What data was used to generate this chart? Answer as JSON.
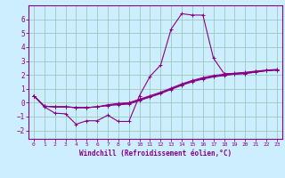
{
  "xlabel": "Windchill (Refroidissement éolien,°C)",
  "bg_color": "#cceeff",
  "line_color": "#880088",
  "grid_color": "#99ccbb",
  "xlim": [
    -0.5,
    23.5
  ],
  "ylim": [
    -2.6,
    7.0
  ],
  "xticks": [
    0,
    1,
    2,
    3,
    4,
    5,
    6,
    7,
    8,
    9,
    10,
    11,
    12,
    13,
    14,
    15,
    16,
    17,
    18,
    19,
    20,
    21,
    22,
    23
  ],
  "yticks": [
    -2,
    -1,
    0,
    1,
    2,
    3,
    4,
    5,
    6
  ],
  "line1_x": [
    0,
    1,
    2,
    3,
    4,
    5,
    6,
    7,
    8,
    9,
    10,
    11,
    12,
    13,
    14,
    15,
    16,
    17,
    18,
    19,
    20,
    21,
    22,
    23
  ],
  "line1_y": [
    0.5,
    -0.3,
    -0.75,
    -0.8,
    -1.55,
    -1.3,
    -1.3,
    -0.9,
    -1.35,
    -1.35,
    0.5,
    1.9,
    2.7,
    5.3,
    6.4,
    6.3,
    6.3,
    3.2,
    2.1,
    2.05,
    2.1,
    2.2,
    2.3,
    2.35
  ],
  "line2_x": [
    0,
    1,
    2,
    3,
    4,
    5,
    6,
    7,
    8,
    9,
    10,
    11,
    12,
    13,
    14,
    15,
    16,
    17,
    18,
    19,
    20,
    21,
    22,
    23
  ],
  "line2_y": [
    0.5,
    -0.25,
    -0.3,
    -0.3,
    -0.35,
    -0.35,
    -0.3,
    -0.2,
    -0.15,
    -0.1,
    0.15,
    0.4,
    0.65,
    0.95,
    1.25,
    1.5,
    1.7,
    1.85,
    1.95,
    2.05,
    2.1,
    2.2,
    2.3,
    2.35
  ],
  "line3_x": [
    0,
    1,
    2,
    3,
    4,
    5,
    6,
    7,
    8,
    9,
    10,
    11,
    12,
    13,
    14,
    15,
    16,
    17,
    18,
    19,
    20,
    21,
    22,
    23
  ],
  "line3_y": [
    0.5,
    -0.25,
    -0.3,
    -0.3,
    -0.35,
    -0.35,
    -0.3,
    -0.2,
    -0.1,
    -0.05,
    0.2,
    0.45,
    0.7,
    1.0,
    1.3,
    1.55,
    1.75,
    1.9,
    2.0,
    2.1,
    2.15,
    2.25,
    2.32,
    2.37
  ],
  "line4_x": [
    0,
    1,
    2,
    3,
    4,
    5,
    6,
    7,
    8,
    9,
    10,
    11,
    12,
    13,
    14,
    15,
    16,
    17,
    18,
    19,
    20,
    21,
    22,
    23
  ],
  "line4_y": [
    0.5,
    -0.25,
    -0.3,
    -0.3,
    -0.35,
    -0.35,
    -0.3,
    -0.15,
    -0.05,
    0.0,
    0.25,
    0.5,
    0.75,
    1.05,
    1.35,
    1.6,
    1.8,
    1.95,
    2.05,
    2.12,
    2.18,
    2.27,
    2.34,
    2.39
  ]
}
